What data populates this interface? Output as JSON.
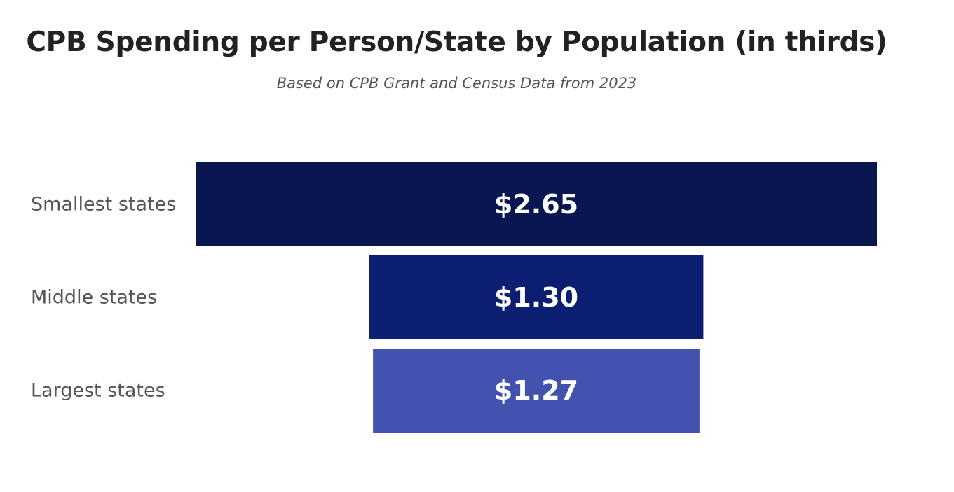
{
  "chart_data": {
    "type": "bar",
    "subtype": "funnel",
    "title": "CPB Spending per Person/State by Population (in thirds)",
    "subtitle": "Based on CPB Grant and Census Data from 2023",
    "categories": [
      "Smallest states",
      "Middle states",
      "Largest states"
    ],
    "values": [
      2.65,
      1.3,
      1.27
    ],
    "value_labels": [
      "$2.65",
      "$1.30",
      "$1.27"
    ],
    "colors": [
      "#0a1650",
      "#0b1e72",
      "#4252ae"
    ],
    "xlabel": "",
    "ylabel": "",
    "grid": false,
    "legend": "none"
  }
}
